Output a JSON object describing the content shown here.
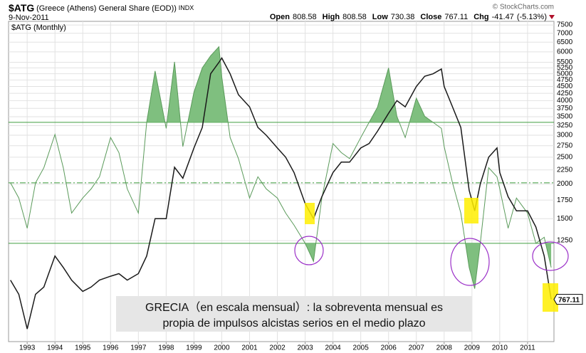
{
  "chart_data": {
    "type": "line",
    "symbol": "$ATG",
    "name": "(Greece (Athens) General Share (EOD))",
    "exchange": "INDX",
    "date": "9-Nov-2011",
    "source": "© StockCharts.com",
    "panel_label": "$ATG (Monthly)",
    "quote": [
      {
        "label": "Open",
        "value": 808.58
      },
      {
        "label": "High",
        "value": 808.58
      },
      {
        "label": "Low",
        "value": 730.38
      },
      {
        "label": "Close",
        "value": 767.11
      },
      {
        "label": "Chg",
        "value": -41.47
      }
    ],
    "change_pct": {
      "value": -5.13,
      "label": "(-5.13%)"
    },
    "annotation": [
      "GRECIA（en escala mensual）: la sobreventa mensual es",
      "propia de impulsos alcistas serios en el medio plazo"
    ],
    "last_price": 767.11,
    "log_scale": true,
    "grid": true,
    "x": [
      1992.4,
      1992.7,
      1993.0,
      1993.3,
      1993.6,
      1994.0,
      1994.3,
      1994.6,
      1995.0,
      1995.3,
      1995.6,
      1996.0,
      1996.3,
      1996.6,
      1997.0,
      1997.3,
      1997.6,
      1998.0,
      1998.3,
      1998.6,
      1999.0,
      1999.3,
      1999.6,
      1999.9,
      2000.0,
      2000.3,
      2000.6,
      2001.0,
      2001.3,
      2001.6,
      2002.0,
      2002.3,
      2002.6,
      2003.0,
      2003.3,
      2003.6,
      2004.0,
      2004.3,
      2004.6,
      2005.0,
      2005.3,
      2005.6,
      2006.0,
      2006.3,
      2006.6,
      2007.0,
      2007.3,
      2007.6,
      2007.9,
      2008.0,
      2008.3,
      2008.6,
      2008.9,
      2009.1,
      2009.3,
      2009.6,
      2009.9,
      2010.0,
      2010.3,
      2010.6,
      2011.0,
      2011.3,
      2011.6,
      2011.85
    ],
    "series": [
      {
        "color": "#1a1a1a",
        "values": [
          900,
          800,
          600,
          800,
          850,
          1100,
          1000,
          900,
          820,
          850,
          900,
          930,
          950,
          900,
          950,
          1100,
          1500,
          1500,
          2300,
          2100,
          2700,
          3200,
          5000,
          5500,
          5700,
          5000,
          4200,
          3800,
          3200,
          3000,
          2700,
          2500,
          2200,
          1700,
          1500,
          1800,
          2200,
          2400,
          2400,
          2700,
          2800,
          3100,
          3600,
          4000,
          3800,
          4500,
          4900,
          5000,
          5200,
          4500,
          3800,
          3200,
          1900,
          1600,
          2000,
          2500,
          2700,
          2200,
          1800,
          1600,
          1600,
          1400,
          1100,
          767.11
        ]
      },
      {
        "color": "#5a9a5a",
        "axis": "y2",
        "values": [
          50,
          45,
          35,
          50,
          55,
          66,
          55,
          40,
          45,
          48,
          52,
          65,
          60,
          48,
          40,
          70,
          87,
          68,
          90,
          62,
          80,
          88,
          92,
          95,
          85,
          65,
          58,
          45,
          52,
          48,
          45,
          40,
          36,
          30,
          24,
          45,
          63,
          60,
          58,
          65,
          70,
          75,
          88,
          72,
          65,
          78,
          72,
          70,
          68,
          62,
          50,
          40,
          22,
          15,
          30,
          55,
          52,
          48,
          35,
          45,
          40,
          30,
          32,
          22
        ]
      }
    ],
    "xlim": [
      1992.33,
      2011.95
    ],
    "xticks": [
      1993,
      1994,
      1995,
      1996,
      1997,
      1998,
      1999,
      2000,
      2001,
      2002,
      2003,
      2004,
      2005,
      2006,
      2007,
      2008,
      2009,
      2010,
      2011
    ],
    "ylim": [
      540,
      7730
    ],
    "yticks": [
      7500,
      7000,
      6500,
      6000,
      5500,
      5250,
      5000,
      4750,
      4500,
      4250,
      4000,
      3750,
      3500,
      3250,
      3000,
      2750,
      2500,
      2250,
      2000,
      1750,
      1500,
      1250
    ],
    "y2lim": [
      -2.5,
      103.4
    ],
    "levels": [
      30,
      50,
      70
    ],
    "level_color": "#3a9a3a",
    "fill_color": "#7fbf7f"
  }
}
